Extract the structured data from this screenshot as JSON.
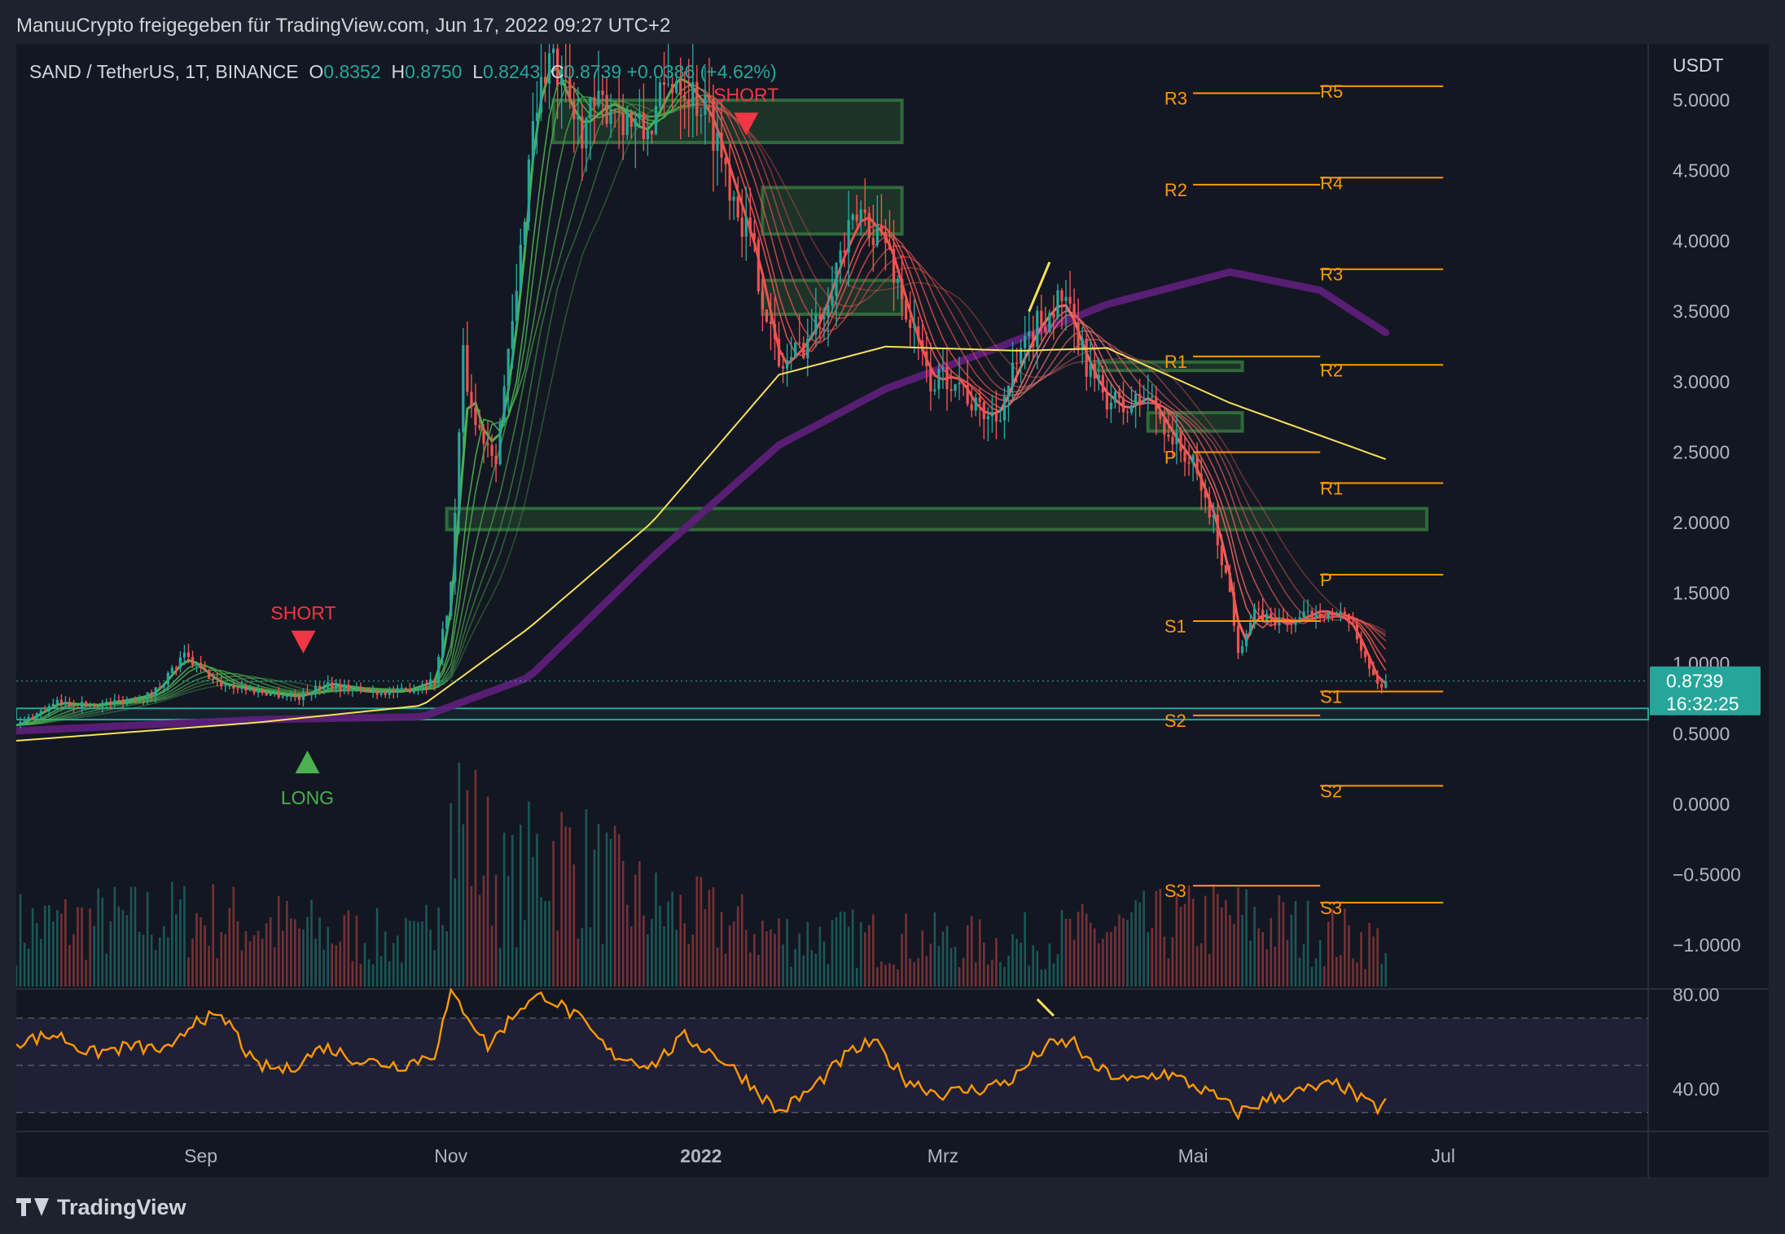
{
  "header": {
    "publisher_line": "ManuuCrypto freigegeben für TradingView.com, Jun 17, 2022 09:27 UTC+2"
  },
  "legend": {
    "symbol": "SAND / TetherUS, 1T, BINANCE",
    "o_label": "O",
    "o_value": "0.8352",
    "h_label": "H",
    "h_value": "0.8750",
    "l_label": "L",
    "l_value": "0.8243",
    "c_label": "C",
    "c_value": "0.8739",
    "change": "+0.0386 (+4.62%)"
  },
  "price_tag": {
    "value": "0.8739",
    "countdown": "16:32:25"
  },
  "brand": {
    "name": "TradingView"
  },
  "colors": {
    "bg": "#131722",
    "up": "#26a69a",
    "down": "#ef5350",
    "orange": "#ff9800",
    "yellow": "#f7e05a",
    "purple": "#5c1f78",
    "zone": "#2f6a3b",
    "teal": "#26a69a"
  },
  "chart_data": {
    "type": "candlestick",
    "symbol": "SAND / TetherUS",
    "timeframe": "1T",
    "exchange": "BINANCE",
    "currency": "USDT",
    "ylim": [
      -1.25,
      5.4
    ],
    "price_ticks": [
      "5.0000",
      "4.5000",
      "4.0000",
      "3.5000",
      "3.0000",
      "2.5000",
      "2.0000",
      "1.5000",
      "1.0000",
      "0.5000",
      "0.0000",
      "−0.5000",
      "−1.0000"
    ],
    "price_tick_values": [
      5.0,
      4.5,
      4.0,
      3.5,
      3.0,
      2.5,
      2.0,
      1.5,
      1.0,
      0.5,
      0.0,
      -0.5,
      -1.0
    ],
    "time_ticks": [
      {
        "label": "Sep",
        "date": "2021-09-01",
        "bold": false
      },
      {
        "label": "Nov",
        "date": "2021-11-01",
        "bold": false
      },
      {
        "label": "2022",
        "date": "2022-01-01",
        "bold": true
      },
      {
        "label": "Mrz",
        "date": "2022-03-01",
        "bold": false
      },
      {
        "label": "Mai",
        "date": "2022-05-01",
        "bold": false
      },
      {
        "label": "Jul",
        "date": "2022-07-01",
        "bold": false
      }
    ],
    "date_range": [
      "2021-07-18",
      "2022-08-20"
    ],
    "price_path": [
      [
        "2021-07-18",
        0.56
      ],
      [
        "2021-07-28",
        0.72
      ],
      [
        "2021-08-05",
        0.7
      ],
      [
        "2021-08-12",
        0.73
      ],
      [
        "2021-08-20",
        0.78
      ],
      [
        "2021-08-28",
        1.05
      ],
      [
        "2021-09-05",
        0.86
      ],
      [
        "2021-09-15",
        0.8
      ],
      [
        "2021-09-25",
        0.76
      ],
      [
        "2021-10-02",
        0.86
      ],
      [
        "2021-10-10",
        0.8
      ],
      [
        "2021-10-20",
        0.8
      ],
      [
        "2021-10-28",
        0.88
      ],
      [
        "2021-11-01",
        1.55
      ],
      [
        "2021-11-04",
        3.15
      ],
      [
        "2021-11-07",
        2.7
      ],
      [
        "2021-11-12",
        2.5
      ],
      [
        "2021-11-17",
        3.6
      ],
      [
        "2021-11-21",
        4.9
      ],
      [
        "2021-11-25",
        5.3
      ],
      [
        "2021-12-02",
        4.8
      ],
      [
        "2021-12-10",
        5.0
      ],
      [
        "2021-12-18",
        4.75
      ],
      [
        "2021-12-26",
        5.2
      ],
      [
        "2022-01-03",
        4.9
      ],
      [
        "2022-01-09",
        4.35
      ],
      [
        "2022-01-14",
        3.9
      ],
      [
        "2022-01-20",
        3.1
      ],
      [
        "2022-01-24",
        3.2
      ],
      [
        "2022-01-29",
        3.4
      ],
      [
        "2022-02-04",
        3.9
      ],
      [
        "2022-02-09",
        4.2
      ],
      [
        "2022-02-15",
        4.0
      ],
      [
        "2022-02-21",
        3.4
      ],
      [
        "2022-02-26",
        3.0
      ],
      [
        "2022-03-04",
        3.05
      ],
      [
        "2022-03-09",
        2.8
      ],
      [
        "2022-03-14",
        2.75
      ],
      [
        "2022-03-18",
        3.05
      ],
      [
        "2022-03-24",
        3.4
      ],
      [
        "2022-03-30",
        3.6
      ],
      [
        "2022-04-04",
        3.2
      ],
      [
        "2022-04-08",
        2.95
      ],
      [
        "2022-04-14",
        2.8
      ],
      [
        "2022-04-20",
        2.9
      ],
      [
        "2022-04-26",
        2.6
      ],
      [
        "2022-05-01",
        2.4
      ],
      [
        "2022-05-06",
        2.0
      ],
      [
        "2022-05-10",
        1.5
      ],
      [
        "2022-05-12",
        1.1
      ],
      [
        "2022-05-16",
        1.35
      ],
      [
        "2022-05-24",
        1.28
      ],
      [
        "2022-06-01",
        1.38
      ],
      [
        "2022-06-08",
        1.3
      ],
      [
        "2022-06-12",
        1.05
      ],
      [
        "2022-06-15",
        0.84
      ],
      [
        "2022-06-17",
        0.8739
      ]
    ],
    "volume_path": [
      [
        "2021-07-18",
        0.35
      ],
      [
        "2021-09-01",
        0.4
      ],
      [
        "2021-10-25",
        0.25
      ],
      [
        "2021-10-31",
        0.9
      ],
      [
        "2021-11-03",
        1.0
      ],
      [
        "2021-11-15",
        0.55
      ],
      [
        "2021-11-25",
        0.8
      ],
      [
        "2021-12-20",
        0.45
      ],
      [
        "2022-01-20",
        0.3
      ],
      [
        "2022-03-15",
        0.25
      ],
      [
        "2022-05-10",
        0.4
      ],
      [
        "2022-06-17",
        0.25
      ]
    ],
    "moving_averages": [
      {
        "color": "#f7e05a",
        "path": [
          [
            "2021-07-18",
            0.45
          ],
          [
            "2021-09-15",
            0.58
          ],
          [
            "2021-10-25",
            0.7
          ],
          [
            "2021-11-20",
            1.25
          ],
          [
            "2021-12-20",
            2.0
          ],
          [
            "2022-01-20",
            3.05
          ],
          [
            "2022-02-15",
            3.25
          ],
          [
            "2022-03-20",
            3.22
          ],
          [
            "2022-04-10",
            3.24
          ],
          [
            "2022-05-10",
            2.85
          ],
          [
            "2022-06-17",
            2.45
          ]
        ]
      },
      {
        "color": "#5c1f78",
        "path": [
          [
            "2021-07-18",
            0.52
          ],
          [
            "2021-09-15",
            0.6
          ],
          [
            "2021-10-25",
            0.62
          ],
          [
            "2021-11-20",
            0.9
          ],
          [
            "2021-12-20",
            1.75
          ],
          [
            "2022-01-20",
            2.55
          ],
          [
            "2022-02-15",
            2.95
          ],
          [
            "2022-03-15",
            3.25
          ],
          [
            "2022-04-10",
            3.55
          ],
          [
            "2022-05-10",
            3.78
          ],
          [
            "2022-06-01",
            3.65
          ],
          [
            "2022-06-17",
            3.35
          ]
        ]
      }
    ],
    "ribbon_bands": [
      {
        "up_color": "#4caf50",
        "down_color": "#ef5350"
      }
    ],
    "demand_zones": [
      {
        "from": "2021-11-26",
        "to": "2022-02-19",
        "low": 4.7,
        "high": 5.0
      },
      {
        "from": "2022-01-16",
        "to": "2022-02-19",
        "low": 4.05,
        "high": 4.38
      },
      {
        "from": "2022-01-16",
        "to": "2022-02-19",
        "low": 3.48,
        "high": 3.72
      },
      {
        "from": "2022-04-07",
        "to": "2022-05-13",
        "low": 3.08,
        "high": 3.14
      },
      {
        "from": "2022-04-20",
        "to": "2022-05-13",
        "low": 2.65,
        "high": 2.78
      },
      {
        "from": "2021-10-31",
        "to": "2022-06-27",
        "low": 1.95,
        "high": 2.1
      }
    ],
    "support_band": {
      "from": "2021-07-18",
      "to": "2022-08-20",
      "low": 0.6,
      "high": 0.68
    },
    "current_price": 0.8739,
    "pivot_sets": [
      {
        "label_x_date": "2022-04-24",
        "from": "2022-05-01",
        "to": "2022-06-01",
        "levels": [
          {
            "label": "R3",
            "value": 5.05
          },
          {
            "label": "R2",
            "value": 4.4
          },
          {
            "label": "R1",
            "value": 3.18
          },
          {
            "label": "P",
            "value": 2.5
          },
          {
            "label": "S1",
            "value": 1.3
          },
          {
            "label": "S2",
            "value": 0.63
          },
          {
            "label": "S3",
            "value": -0.58
          }
        ]
      },
      {
        "label_x_date": "2022-06-01",
        "from": "2022-06-01",
        "to": "2022-07-01",
        "levels": [
          {
            "label": "R5",
            "value": 5.1
          },
          {
            "label": "R4",
            "value": 4.45
          },
          {
            "label": "R3",
            "value": 3.8
          },
          {
            "label": "R2",
            "value": 3.12
          },
          {
            "label": "R1",
            "value": 2.28
          },
          {
            "label": "P",
            "value": 1.63
          },
          {
            "label": "S1",
            "value": 0.8
          },
          {
            "label": "S2",
            "value": 0.13
          },
          {
            "label": "S3",
            "value": -0.7
          }
        ]
      }
    ],
    "signals": [
      {
        "text": "SHORT",
        "date": "2021-09-26",
        "price": 1.07,
        "kind": "short"
      },
      {
        "text": "LONG",
        "date": "2021-09-27",
        "price": 0.38,
        "kind": "long"
      },
      {
        "text": "SHORT",
        "date": "2022-01-12",
        "price": 4.75,
        "kind": "short"
      }
    ],
    "rsi": {
      "ticks": [
        "80.00",
        "40.00"
      ],
      "tick_values": [
        80,
        40
      ],
      "band": [
        30,
        70
      ],
      "mid": 50,
      "ylim": [
        22,
        82
      ],
      "path": [
        [
          "2021-07-18",
          60
        ],
        [
          "2021-07-28",
          63
        ],
        [
          "2021-08-05",
          55
        ],
        [
          "2021-08-15",
          58
        ],
        [
          "2021-08-25",
          56
        ],
        [
          "2021-08-31",
          71
        ],
        [
          "2021-09-08",
          68
        ],
        [
          "2021-09-14",
          50
        ],
        [
          "2021-09-22",
          48
        ],
        [
          "2021-10-01",
          58
        ],
        [
          "2021-10-10",
          52
        ],
        [
          "2021-10-20",
          50
        ],
        [
          "2021-10-28",
          55
        ],
        [
          "2021-11-01",
          80
        ],
        [
          "2021-11-05",
          72
        ],
        [
          "2021-11-10",
          58
        ],
        [
          "2021-11-18",
          75
        ],
        [
          "2021-11-24",
          80
        ],
        [
          "2021-12-02",
          70
        ],
        [
          "2021-12-10",
          55
        ],
        [
          "2021-12-20",
          50
        ],
        [
          "2021-12-28",
          62
        ],
        [
          "2022-01-05",
          54
        ],
        [
          "2022-01-12",
          44
        ],
        [
          "2022-01-20",
          30
        ],
        [
          "2022-01-28",
          40
        ],
        [
          "2022-02-06",
          55
        ],
        [
          "2022-02-12",
          60
        ],
        [
          "2022-02-20",
          44
        ],
        [
          "2022-02-28",
          38
        ],
        [
          "2022-03-10",
          40
        ],
        [
          "2022-03-18",
          44
        ],
        [
          "2022-03-26",
          58
        ],
        [
          "2022-04-02",
          60
        ],
        [
          "2022-04-06",
          50
        ],
        [
          "2022-04-15",
          43
        ],
        [
          "2022-04-24",
          47
        ],
        [
          "2022-05-03",
          40
        ],
        [
          "2022-05-08",
          35
        ],
        [
          "2022-05-12",
          30
        ],
        [
          "2022-05-20",
          36
        ],
        [
          "2022-05-30",
          40
        ],
        [
          "2022-06-06",
          42
        ],
        [
          "2022-06-12",
          34
        ],
        [
          "2022-06-15",
          32
        ],
        [
          "2022-06-17",
          35
        ]
      ]
    }
  }
}
